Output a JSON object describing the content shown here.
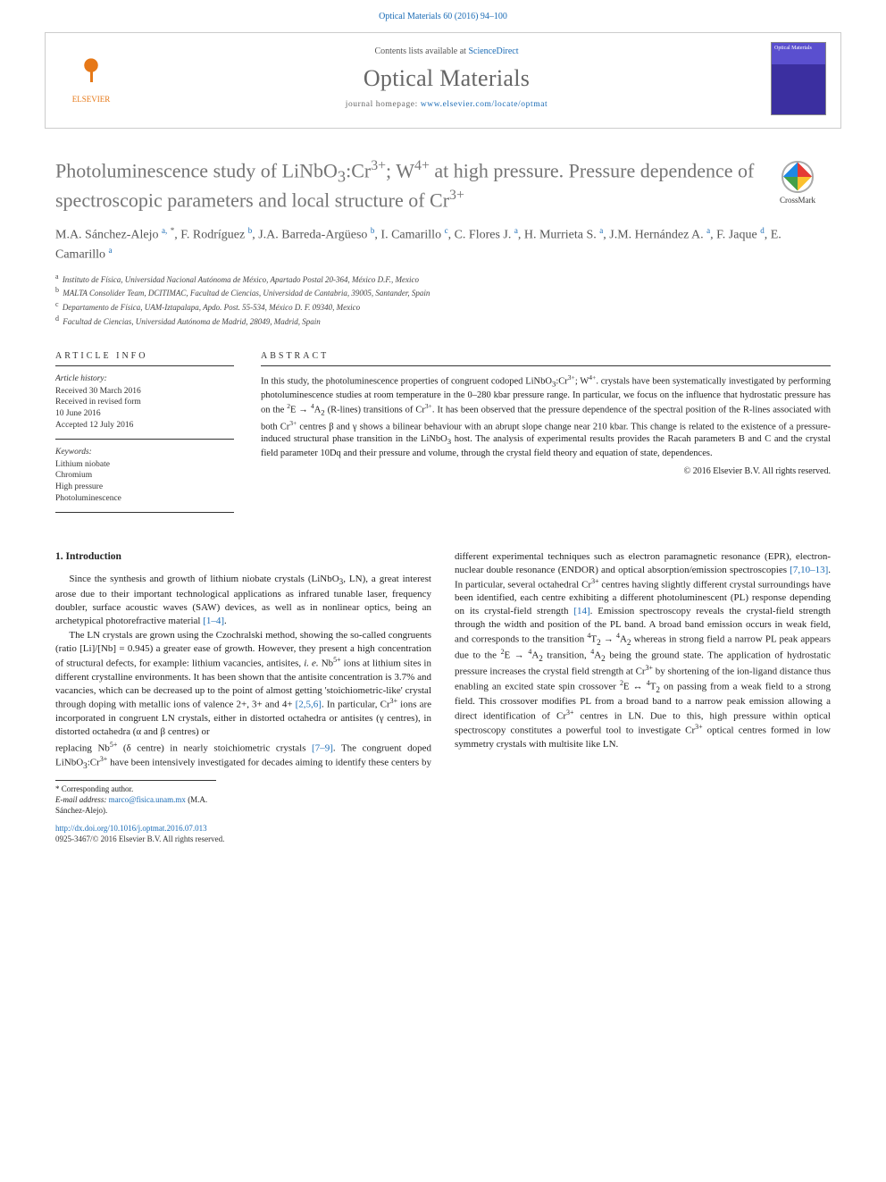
{
  "citation": "Optical Materials 60 (2016) 94–100",
  "header": {
    "contents_prefix": "Contents lists available at ",
    "contents_link": "ScienceDirect",
    "journal": "Optical Materials",
    "homepage_prefix": "journal homepage: ",
    "homepage_url": "www.elsevier.com/locate/optmat",
    "publisher": "ELSEVIER",
    "cover_label": "Optical Materials"
  },
  "crossmark": "CrossMark",
  "title_html": "Photoluminescence study of LiNbO<sub>3</sub>:Cr<sup>3+</sup>; W<sup>4+</sup> at high pressure. Pressure dependence of spectroscopic parameters and local structure of Cr<sup>3+</sup>",
  "authors_html": "M.A. Sánchez-Alejo <sup>a,</sup> <sup class=\"ast\">*</sup>, F. Rodríguez <sup>b</sup>, J.A. Barreda-Argüeso <sup>b</sup>, I. Camarillo <sup>c</sup>, C. Flores J. <sup>a</sup>, H. Murrieta S. <sup>a</sup>, J.M. Hernández A. <sup>a</sup>, F. Jaque <sup>d</sup>, E. Camarillo <sup>a</sup>",
  "affiliations": [
    {
      "sup": "a",
      "text": "Instituto de Física, Universidad Nacional Autónoma de México, Apartado Postal 20-364, México D.F., Mexico"
    },
    {
      "sup": "b",
      "text": "MALTA Consolider Team, DCITIMAC, Facultad de Ciencias, Universidad de Cantabria, 39005, Santander, Spain"
    },
    {
      "sup": "c",
      "text": "Departamento de Física, UAM-Iztapalapa, Apdo. Post. 55-534, México D. F. 09340, Mexico"
    },
    {
      "sup": "d",
      "text": "Facultad de Ciencias, Universidad Autónoma de Madrid, 28049, Madrid, Spain"
    }
  ],
  "info": {
    "head": "ARTICLE INFO",
    "history_label": "Article history:",
    "received": "Received 30 March 2016",
    "revised1": "Received in revised form",
    "revised2": "10 June 2016",
    "accepted": "Accepted 12 July 2016",
    "keywords_label": "Keywords:",
    "keywords": [
      "Lithium niobate",
      "Chromium",
      "High pressure",
      "Photoluminescence"
    ]
  },
  "abstract": {
    "head": "ABSTRACT",
    "text_html": "In this study, the photoluminescence properties of congruent codoped LiNbO<sub>3</sub>:Cr<sup>3+</sup>; W<sup>4+</sup>. crystals have been systematically investigated by performing photoluminescence studies at room temperature in the 0–280 kbar pressure range. In particular, we focus on the influence that hydrostatic pressure has on the <sup>2</sup>E → <sup>4</sup>A<sub>2</sub> (R-lines) transitions of Cr<sup>3+</sup>. It has been observed that the pressure dependence of the spectral position of the R-lines associated with both Cr<sup>3+</sup> centres β and γ shows a bilinear behaviour with an abrupt slope change near 210 kbar. This change is related to the existence of a pressure-induced structural phase transition in the LiNbO<sub>3</sub> host. The analysis of experimental results provides the Racah parameters B and C and the crystal field parameter 10Dq and their pressure and volume, through the crystal field theory and equation of state, dependences.",
    "copyright": "© 2016 Elsevier B.V. All rights reserved."
  },
  "section1": {
    "heading": "1. Introduction",
    "p1_html": "Since the synthesis and growth of lithium niobate crystals (LiNbO<sub>3</sub>, LN), a great interest arose due to their important technological applications as infrared tunable laser, frequency doubler, surface acoustic waves (SAW) devices, as well as in nonlinear optics, being an archetypical photorefractive material <a href=\"#\">[1–4]</a>.",
    "p2_html": "The LN crystals are grown using the Czochralski method, showing the so-called congruents (ratio [Li]/[Nb] = 0.945) a greater ease of growth. However, they present a high concentration of structural defects, for example: lithium vacancies, antisites, <em>i. e.</em> Nb<sup>5+</sup> ions at lithium sites in different crystalline environments. It has been shown that the antisite concentration is 3.7% and vacancies, which can be decreased up to the point of almost getting 'stoichiometric-like' crystal through doping with metallic ions of valence 2+, 3+ and 4+ <a href=\"#\">[2,5,6]</a>. In particular, Cr<sup>3+</sup> ions are incorporated in congruent LN crystals, either in distorted octahedra or antisites (γ centres), in distorted octahedra (α and β centres) or",
    "p3_html": "replacing Nb<sup>5+</sup> (δ centre) in nearly stoichiometric crystals <a href=\"#\">[7–9]</a>. The congruent doped LiNbO<sub>3</sub>:Cr<sup>3+</sup> have been intensively investigated for decades aiming to identify these centers by different experimental techniques such as electron paramagnetic resonance (EPR), electron-nuclear double resonance (ENDOR) and optical absorption/emission spectroscopies <a href=\"#\">[7,10–13]</a>. In particular, several octahedral Cr<sup>3+</sup> centres having slightly different crystal surroundings have been identified, each centre exhibiting a different photoluminescent (PL) response depending on its crystal-field strength <a href=\"#\">[14]</a>. Emission spectroscopy reveals the crystal-field strength through the width and position of the PL band. A broad band emission occurs in weak field, and corresponds to the transition <sup>4</sup>T<sub>2</sub> → <sup>4</sup>A<sub>2</sub> whereas in strong field a narrow PL peak appears due to the <sup>2</sup>E → <sup>4</sup>A<sub>2</sub> transition, <sup>4</sup>A<sub>2</sub> being the ground state. The application of hydrostatic pressure increases the crystal field strength at Cr<sup>3+</sup> by shortening of the ion-ligand distance thus enabling an excited state spin crossover <sup>2</sup>E ↔ <sup>4</sup>T<sub>2</sub> on passing from a weak field to a strong field. This crossover modifies PL from a broad band to a narrow peak emission allowing a direct identification of Cr<sup>3+</sup> centres in LN. Due to this, high pressure within optical spectroscopy constitutes a powerful tool to investigate Cr<sup>3+</sup> optical centres formed in low symmetry crystals with multisite like LN."
  },
  "footnotes": {
    "corresponding": "* Corresponding author.",
    "email_label": "E-mail address: ",
    "email": "marco@fisica.unam.mx",
    "email_person": " (M.A. Sánchez-Alejo)."
  },
  "footer": {
    "doi": "http://dx.doi.org/10.1016/j.optmat.2016.07.013",
    "issn_line": "0925-3467/© 2016 Elsevier B.V. All rights reserved."
  },
  "colors": {
    "link": "#1a6bb5",
    "title_gray": "#757575",
    "journal_gray": "#666666",
    "elsevier_orange": "#e67817"
  }
}
